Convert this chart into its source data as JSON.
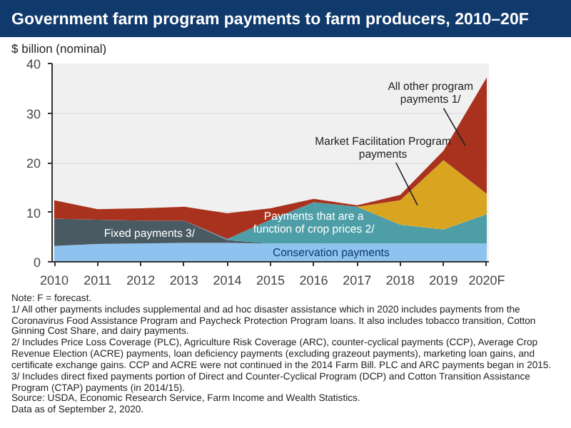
{
  "chart_data": {
    "type": "area",
    "stacked": true,
    "title": "Government farm program payments to farm producers, 2010–20F",
    "ylabel": "$ billion (nominal)",
    "categories": [
      "2010",
      "2011",
      "2012",
      "2013",
      "2014",
      "2015",
      "2016",
      "2017",
      "2018",
      "2019",
      "2020F"
    ],
    "series": [
      {
        "name": "Conservation payments",
        "color": "#8ec3ef",
        "values": [
          3.2,
          3.6,
          3.7,
          3.8,
          3.8,
          3.7,
          3.7,
          3.7,
          3.7,
          3.7,
          3.7
        ]
      },
      {
        "name": "Fixed payments 3/",
        "color": "#4a5a63",
        "values": [
          5.5,
          4.9,
          4.6,
          4.5,
          0.6,
          0,
          0,
          0,
          0,
          0,
          0
        ]
      },
      {
        "name": "Payments that are a function of crop prices 2/",
        "color": "#4d9ea6",
        "values": [
          0,
          0,
          0,
          0,
          0.2,
          4.8,
          8.3,
          7.4,
          3.8,
          2.8,
          5.9
        ]
      },
      {
        "name": "Market Facilitation Program payments",
        "color": "#d9a520",
        "values": [
          0,
          0,
          0,
          0,
          0,
          0,
          0,
          0,
          4.9,
          14.0,
          4.1
        ]
      },
      {
        "name": "All other program payments 1/",
        "color": "#a8321e",
        "values": [
          3.7,
          2.1,
          2.5,
          2.8,
          5.2,
          2.3,
          0.7,
          0.3,
          1.1,
          1.9,
          23.5
        ]
      }
    ],
    "ylim": [
      0,
      40
    ],
    "yticks": [
      0,
      10,
      20,
      30,
      40
    ],
    "grid": "y",
    "annotations": [
      "Note: F = forecast.",
      "1/ All other payments includes supplemental and ad hoc disaster assistance which in 2020 includes payments from the Coronavirus Food Assistance Program and Paycheck Protection Program loans. It also includes tobacco transition, Cotton Ginning Cost Share, and dairy payments.",
      "2/ Includes Price Loss Coverage (PLC), Agriculture Risk Coverage (ARC), counter-cyclical payments (CCP), Average Crop Revenue Election (ACRE) payments, loan deficiency payments (excluding grazeout payments), marketing loan gains, and certificate exchange gains. CCP and ACRE were not continued in the 2014 Farm Bill. PLC and ARC payments began in 2015.",
      "3/ Includes direct fixed payments portion of Direct and Counter-Cyclical Program (DCP) and Cotton Transition Assistance Program (CTAP) payments (in 2014/15).",
      "Source: USDA, Economic Research Service, Farm Income and Wealth Statistics.",
      "Data as of September 2, 2020."
    ]
  }
}
